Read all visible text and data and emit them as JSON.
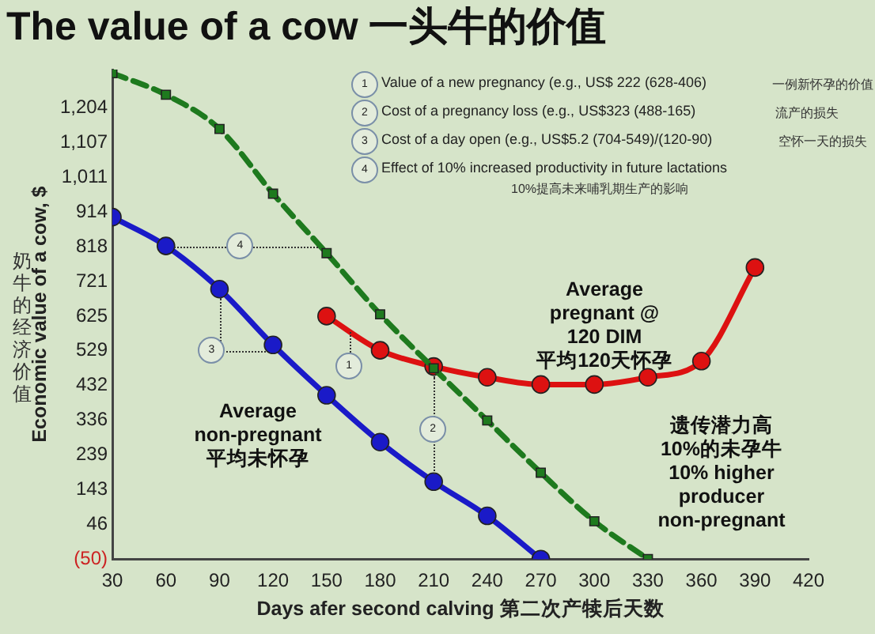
{
  "chart_data": {
    "type": "line",
    "title": "The value of a cow 一头牛的价值",
    "xlabel": "Days afer second calving 第二次产犊后天数",
    "ylabel": "Economic value of a cow, $",
    "x": [
      30,
      60,
      90,
      120,
      150,
      180,
      210,
      240,
      270,
      300,
      330,
      360,
      390
    ],
    "xlim": [
      30,
      420
    ],
    "xticks": [
      30,
      60,
      90,
      120,
      150,
      180,
      210,
      240,
      270,
      300,
      330,
      360,
      390,
      420
    ],
    "ylim": [
      -50,
      1310
    ],
    "yticks": [
      {
        "value": -50,
        "label": "(50)"
      },
      46,
      143,
      239,
      336,
      432,
      529,
      625,
      721,
      818,
      914,
      {
        "value": 1011,
        "label": "1,011"
      },
      {
        "value": 1107,
        "label": "1,107"
      },
      {
        "value": 1204,
        "label": "1,204"
      }
    ],
    "grid": false,
    "legend": false,
    "series": [
      {
        "name": "Average\nnon-pregnant\n平均未怀孕",
        "color": "#1a1ac8",
        "marker": "circle",
        "line_style": "solid",
        "values": [
          900,
          820,
          700,
          545,
          405,
          275,
          165,
          70,
          -50,
          null,
          null,
          null,
          null
        ]
      },
      {
        "name": "遗传潜力高\n10%的未孕牛\n10% higher\nproducer\nnon-pregnant",
        "color": "#1e7a1e",
        "marker": "square",
        "line_style": "dashed",
        "values": [
          1300,
          1240,
          1145,
          965,
          800,
          630,
          480,
          335,
          190,
          55,
          -50,
          null,
          null
        ]
      },
      {
        "name": "Average\npregnant @\n120 DIM\n平均120天怀孕",
        "color": "#dd1111",
        "marker": "circle",
        "line_style": "solid",
        "values": [
          null,
          null,
          null,
          null,
          625,
          530,
          485,
          455,
          435,
          435,
          455,
          500,
          760
        ]
      }
    ],
    "annotations": [
      "奶牛的经济价值",
      "1",
      "Value of a new pregnancy (e.g., US$ 222 (628-406)",
      "一例新怀孕的价值",
      "2",
      "Cost of a pregnancy loss (e.g., US$323 (488-165)",
      "流产的损失",
      "3",
      "Cost of a day open (e.g., US$5.2 (704-549)/(120-90)",
      "空怀一天的损失",
      "4",
      "Effect of 10% increased productivity in future lactations",
      "10%提高未来哺乳期生产的影响",
      {
        "text": "4",
        "x": 102,
        "y": 818
      },
      {
        "text": "3",
        "x": 86,
        "y": 529
      },
      {
        "text": "1",
        "x": 163,
        "y": 485
      },
      {
        "text": "2",
        "x": 210,
        "y": 310
      }
    ]
  }
}
